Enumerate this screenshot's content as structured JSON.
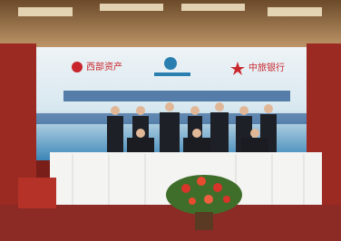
{
  "banner": {
    "logos": [
      "西部资产",
      "中旅银行"
    ]
  }
}
